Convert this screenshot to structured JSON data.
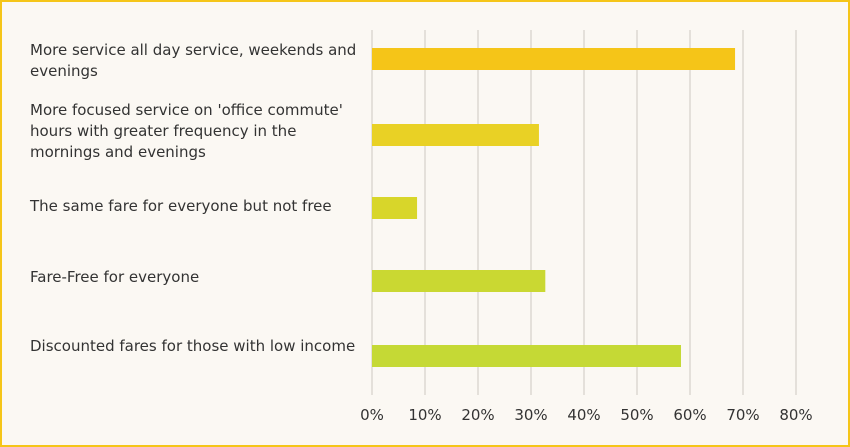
{
  "chart_data": {
    "type": "bar",
    "orientation": "horizontal",
    "title": "",
    "xlabel": "",
    "ylabel": "",
    "categories": [
      "More service all day service, weekends and evenings",
      "More focused service on 'office commute' hours with greater frequency in the mornings and evenings",
      "The same fare for everyone but not free",
      "Fare-Free for everyone",
      "Discounted fares for those with low income"
    ],
    "values": [
      68.5,
      31.5,
      8.5,
      32.7,
      58.3
    ],
    "bar_colors": [
      "#f5c518",
      "#e9d125",
      "#d8d62a",
      "#cad832",
      "#c5d935"
    ],
    "xlim": [
      0,
      80
    ],
    "ticks": [
      0,
      10,
      20,
      30,
      40,
      50,
      60,
      70,
      80
    ],
    "tick_labels": [
      "0%",
      "10%",
      "20%",
      "30%",
      "40%",
      "50%",
      "60%",
      "70%",
      "80%"
    ],
    "grid": true,
    "legend": "none"
  },
  "colors": {
    "border": "#f5c518",
    "background": "#fbf8f3",
    "gridline": "#ddd8d2",
    "text": "#333333"
  }
}
